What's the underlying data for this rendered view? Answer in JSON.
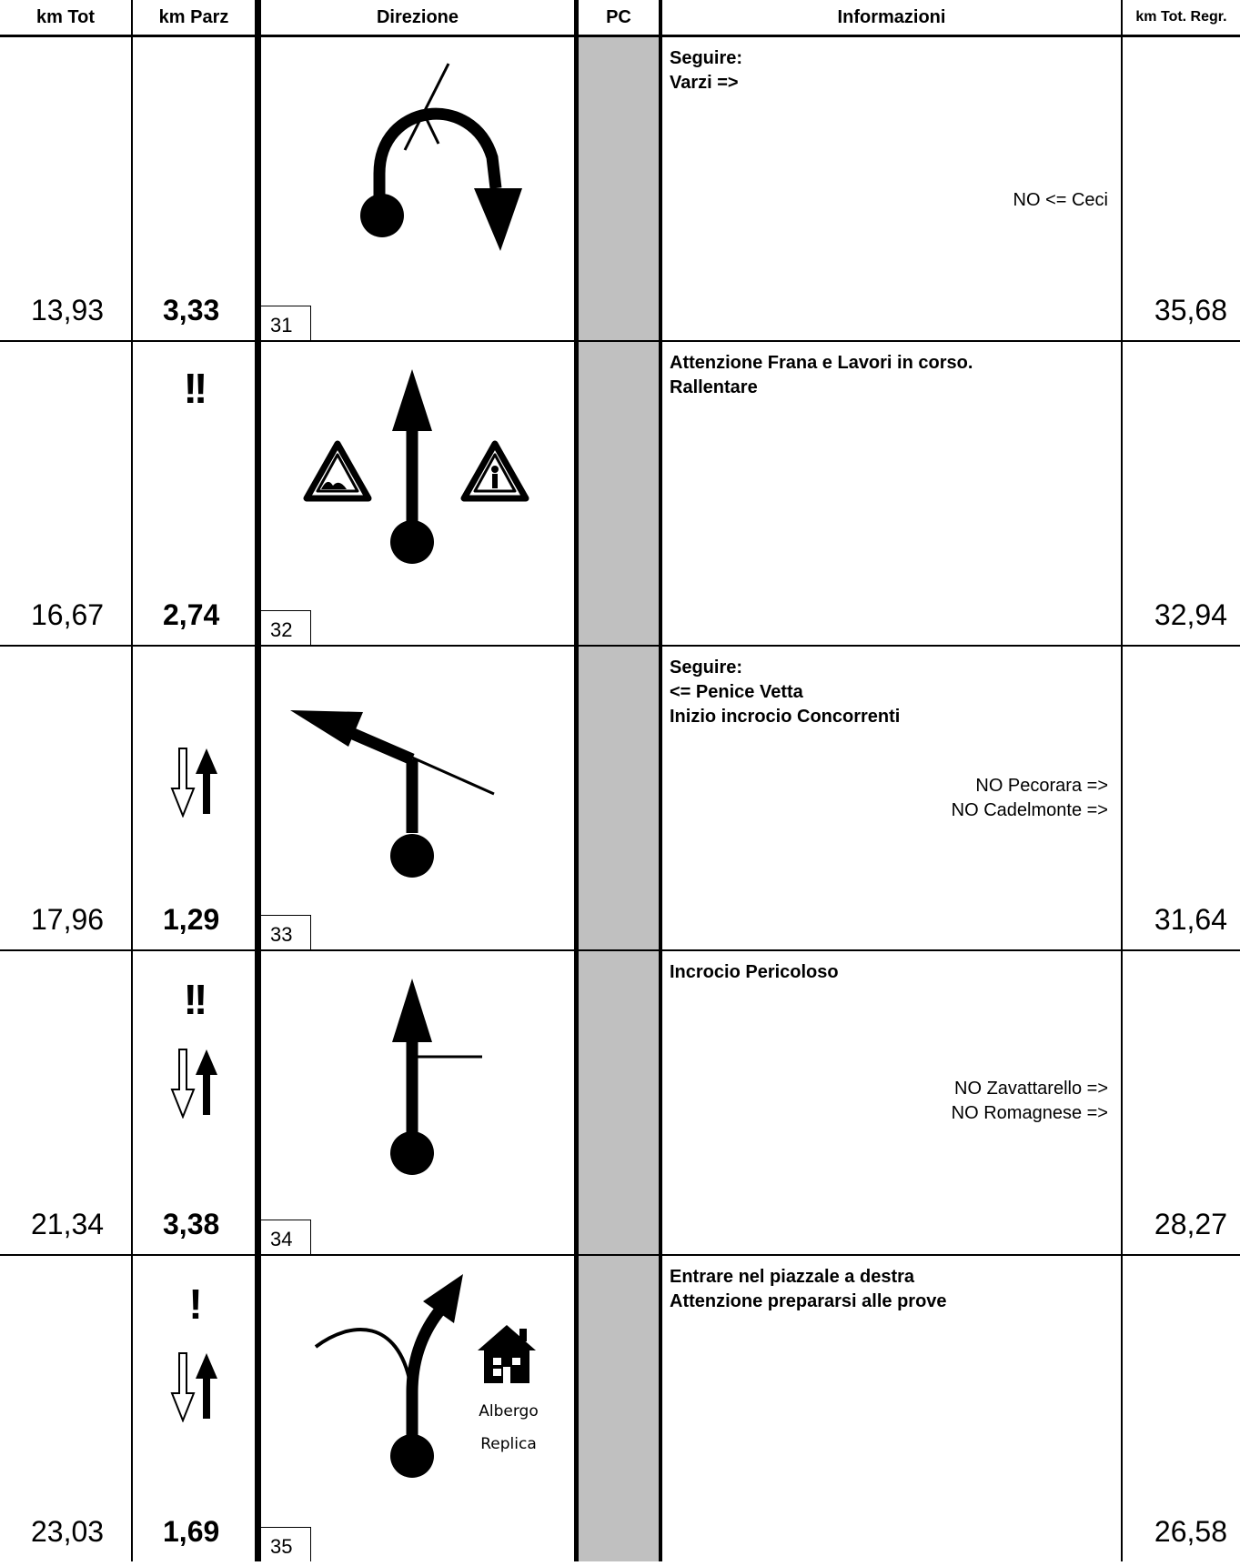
{
  "headers": {
    "km_tot": "km Tot",
    "km_parz": "km Parz",
    "direzione": "Direzione",
    "pc": "PC",
    "informazioni": "Informazioni",
    "km_tot_regr": "km Tot. Regr."
  },
  "rows": [
    {
      "km_tot": "13,93",
      "km_parz": "3,33",
      "number": "31",
      "km_regr": "35,68",
      "warnings": "",
      "info": "Seguire:\nVarzi =>",
      "no_info": "NO <= Ceci",
      "diagram_icon": "u-turn-right-arrow-icon"
    },
    {
      "km_tot": "16,67",
      "km_parz": "2,74",
      "number": "32",
      "km_regr": "32,94",
      "warnings": "!!",
      "info": "Attenzione Frana e Lavori in corso.\nRallentare",
      "no_info": "",
      "diagram_icon": "straight-arrow-with-bump-and-roadworks-signs-icon"
    },
    {
      "km_tot": "17,96",
      "km_parz": "1,29",
      "number": "33",
      "km_regr": "31,64",
      "warnings": "",
      "info": "Seguire:\n<= Penice Vetta\nInizio incrocio Concorrenti",
      "no_info": "NO Pecorara =>\nNO Cadelmonte =>",
      "diagram_icon": "left-turn-arrow-icon"
    },
    {
      "km_tot": "21,34",
      "km_parz": "3,38",
      "number": "34",
      "km_regr": "28,27",
      "warnings": "!!",
      "info": "Incrocio Pericoloso",
      "no_info": "NO Zavattarello =>\nNO Romagnese =>",
      "diagram_icon": "straight-arrow-with-right-junction-icon"
    },
    {
      "km_tot": "23,03",
      "km_parz": "1,69",
      "number": "35",
      "km_regr": "26,58",
      "warnings": "!",
      "info": "Entrare nel piazzale a destra\nAttenzione prepararsi alle prove",
      "no_info": "",
      "diagram_icon": "fork-right-arrow-with-hotel-icon",
      "hotel_label_1": "Albergo",
      "hotel_label_2": "Replica"
    }
  ]
}
